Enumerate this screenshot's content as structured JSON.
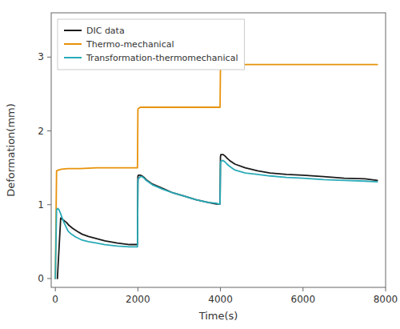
{
  "chart_data": {
    "type": "line",
    "xlabel": "Time(s)",
    "ylabel": "Deformation(mm)",
    "xlim": [
      -100,
      8000
    ],
    "ylim": [
      -0.12,
      3.6
    ],
    "xticks": [
      0,
      2000,
      4000,
      6000,
      8000
    ],
    "yticks": [
      0,
      1,
      2,
      3
    ],
    "grid": false,
    "legend": "upper left",
    "series": [
      {
        "name": "DIC data",
        "color": "#1a1a1a",
        "x": [
          50,
          130,
          180,
          220,
          270,
          330,
          420,
          530,
          650,
          800,
          1000,
          1200,
          1500,
          1800,
          1990,
          2000,
          2010,
          2060,
          2100,
          2150,
          2200,
          2350,
          2600,
          2850,
          3100,
          3400,
          3700,
          3900,
          3960,
          3990,
          4000,
          4010,
          4060,
          4110,
          4160,
          4220,
          4350,
          4600,
          4900,
          5200,
          5600,
          6000,
          6500,
          7000,
          7500,
          7800
        ],
        "values": [
          0.0,
          0.82,
          0.8,
          0.78,
          0.76,
          0.72,
          0.68,
          0.64,
          0.6,
          0.57,
          0.54,
          0.51,
          0.48,
          0.46,
          0.46,
          1.38,
          1.4,
          1.4,
          1.39,
          1.37,
          1.34,
          1.28,
          1.22,
          1.16,
          1.12,
          1.07,
          1.03,
          1.01,
          1.01,
          1.01,
          1.65,
          1.68,
          1.68,
          1.66,
          1.63,
          1.6,
          1.55,
          1.5,
          1.46,
          1.43,
          1.41,
          1.4,
          1.38,
          1.36,
          1.35,
          1.33
        ]
      },
      {
        "name": "Thermo-mechanical",
        "color": "#E8920A",
        "x": [
          0,
          30,
          80,
          150,
          300,
          600,
          1000,
          1500,
          1990,
          2000,
          2005,
          2060,
          2100,
          3900,
          3950,
          3990,
          4000,
          4005,
          4100,
          5000,
          6000,
          7800
        ],
        "values": [
          0.0,
          1.46,
          1.47,
          1.48,
          1.49,
          1.49,
          1.5,
          1.5,
          1.5,
          2.28,
          2.3,
          2.32,
          2.32,
          2.32,
          2.32,
          2.32,
          2.87,
          2.9,
          2.9,
          2.9,
          2.9,
          2.9
        ]
      },
      {
        "name": "Transformation-thermomechanical",
        "color": "#2AABB8",
        "x": [
          0,
          30,
          60,
          90,
          120,
          160,
          200,
          250,
          310,
          390,
          500,
          650,
          800,
          1000,
          1200,
          1500,
          1800,
          1990,
          2000,
          2010,
          2060,
          2100,
          2150,
          2200,
          2350,
          2600,
          2850,
          3100,
          3400,
          3700,
          3900,
          3960,
          3990,
          4000,
          4010,
          4060,
          4110,
          4160,
          4220,
          4350,
          4600,
          4900,
          5200,
          5600,
          6000,
          6500,
          7000,
          7500,
          7800
        ],
        "values": [
          0.0,
          0.93,
          0.95,
          0.93,
          0.89,
          0.83,
          0.77,
          0.71,
          0.64,
          0.6,
          0.56,
          0.52,
          0.5,
          0.48,
          0.46,
          0.44,
          0.43,
          0.43,
          1.3,
          1.35,
          1.38,
          1.38,
          1.36,
          1.33,
          1.27,
          1.21,
          1.16,
          1.12,
          1.07,
          1.03,
          1.02,
          1.01,
          1.01,
          1.56,
          1.59,
          1.6,
          1.58,
          1.55,
          1.52,
          1.47,
          1.43,
          1.41,
          1.39,
          1.37,
          1.36,
          1.34,
          1.33,
          1.32,
          1.31
        ]
      }
    ]
  }
}
